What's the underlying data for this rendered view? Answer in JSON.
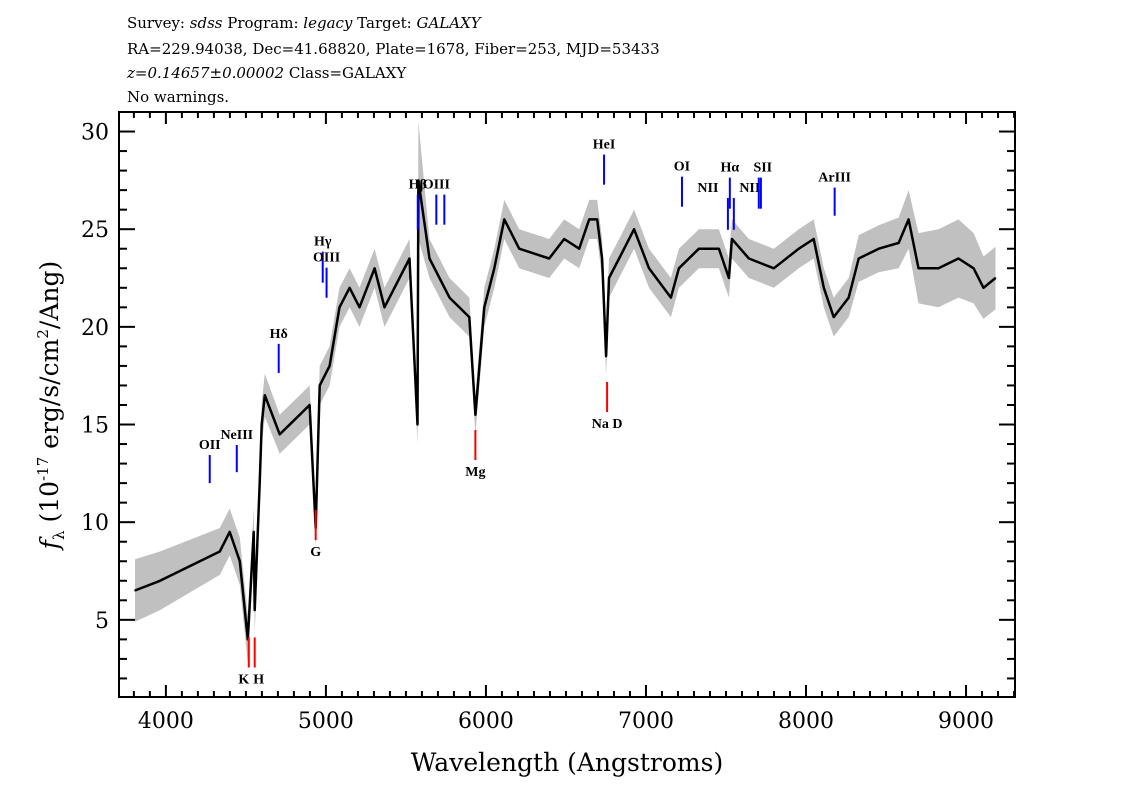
{
  "header": {
    "line1": {
      "survey_label": "Survey: ",
      "survey": "sdss",
      "program_label": " Program: ",
      "program": "legacy",
      "target_label": " Target: ",
      "target": "GALAXY"
    },
    "line2": "RA=229.94038, Dec=41.68820, Plate=1678, Fiber=253, MJD=53433",
    "line3": {
      "redshift": "z=0.14657±0.00002",
      "class": " Class=GALAXY"
    },
    "line4": "No warnings."
  },
  "chart_data": {
    "type": "line",
    "xlabel": "Wavelength (Angstroms)",
    "ylabel": {
      "symbol": "f",
      "sub": "λ",
      "prefix": " (10",
      "exp": "-17",
      "mid": " erg/s/cm",
      "exp2": "2",
      "suffix": "/Ang)"
    },
    "xlim": [
      3707,
      9306
    ],
    "ylim": [
      1.05,
      31.0
    ],
    "xticks": [
      4000,
      5000,
      6000,
      7000,
      8000,
      9000
    ],
    "yticks": [
      5,
      10,
      15,
      20,
      25,
      30
    ],
    "colors": {
      "flux": "#000000",
      "error_band": "#c0c0c0",
      "emission": "#0000ff",
      "absorption": "#ff0000"
    },
    "series": [
      {
        "x": [
          3807,
          3963,
          4212,
          4337,
          4399,
          4462,
          4512,
          4549,
          4555,
          4586,
          4599,
          4618,
          4711,
          4836,
          4898,
          4936,
          4961,
          5023,
          5085,
          5148,
          5210,
          5304,
          5366,
          5460,
          5522,
          5572,
          5578,
          5647,
          5772,
          5896,
          5934,
          5990,
          6052,
          6115,
          6208,
          6395,
          6489,
          6583,
          6645,
          6695,
          6726,
          6751,
          6769,
          6832,
          6926,
          7019,
          7156,
          7206,
          7331,
          7456,
          7518,
          7537,
          7643,
          7799,
          7955,
          8048,
          8111,
          8173,
          8267,
          8329,
          8454,
          8579,
          8641,
          8703,
          8828,
          8953,
          9047,
          9109,
          9184
        ],
        "y": [
          6.5,
          7,
          8,
          8.5,
          9.5,
          8,
          4,
          9.5,
          5.5,
          12,
          15,
          16.5,
          14.5,
          15.5,
          16,
          9.7,
          17,
          18,
          21,
          22,
          21,
          23,
          21,
          22.5,
          23.5,
          15,
          27.5,
          23.5,
          21.5,
          20.5,
          15.5,
          21,
          23,
          25.5,
          24,
          23.5,
          24.5,
          24,
          25.5,
          25.5,
          23.5,
          18.5,
          22.5,
          23.5,
          25,
          23,
          21.5,
          23,
          24,
          24,
          22.5,
          24.5,
          23.5,
          23,
          24,
          24.5,
          22,
          20.5,
          21.5,
          23.5,
          24,
          24.3,
          25.5,
          23,
          23,
          23.5,
          23,
          22,
          22.5
        ],
        "err": [
          1.6,
          1.5,
          1.3,
          1.2,
          1.2,
          1.2,
          1.2,
          1.2,
          1.2,
          1.1,
          1.1,
          1.1,
          1.0,
          1.0,
          1.0,
          1.0,
          1.0,
          1.0,
          1.0,
          1.0,
          1.0,
          1.0,
          1.0,
          1.0,
          1.0,
          1.0,
          3.0,
          1.0,
          1.0,
          1.0,
          1.0,
          1.0,
          1.0,
          1.0,
          1.0,
          1.0,
          1.0,
          1.0,
          1.0,
          1.0,
          1.0,
          1.0,
          1.0,
          1.0,
          1.0,
          1.0,
          1.0,
          1.0,
          1.0,
          1.0,
          1.0,
          1.0,
          1.0,
          1.0,
          1.0,
          1.0,
          1.0,
          1.0,
          1.0,
          1.2,
          1.2,
          1.3,
          1.5,
          1.8,
          2.0,
          2.0,
          1.8,
          1.6,
          1.6
        ]
      }
    ],
    "lines": [
      {
        "label": "OII",
        "wave": 4274,
        "tick": [
          12.0,
          13.44
        ],
        "kind": "emission"
      },
      {
        "label": "NeIII",
        "wave": 4443,
        "tick": [
          12.56,
          13.95
        ],
        "kind": "emission"
      },
      {
        "label": "Hδ",
        "wave": 4705,
        "tick": [
          17.64,
          19.13
        ],
        "kind": "emission"
      },
      {
        "label": "Hγ",
        "wave": 4980,
        "tick": [
          22.26,
          23.85
        ],
        "kind": "emission"
      },
      {
        "label": "OIII",
        "wave": 5004,
        "tick": [
          21.49,
          23.03
        ],
        "kind": "emission"
      },
      {
        "label": "Hβ",
        "wave": 5574,
        "tick": [
          24.97,
          26.77
        ],
        "kind": "emission"
      },
      {
        "label": "OIII",
        "wave": 5690,
        "tick": [
          25.23,
          26.77
        ],
        "kind": "emission"
      },
      {
        "label": "",
        "wave": 5740,
        "tick": [
          25.23,
          26.77
        ],
        "kind": "emission"
      },
      {
        "label": "HeI",
        "wave": 6738,
        "tick": [
          27.28,
          28.82
        ],
        "kind": "emission"
      },
      {
        "label": "OI",
        "wave": 7225,
        "tick": [
          26.15,
          27.69
        ],
        "kind": "emission"
      },
      {
        "label": "NII",
        "wave": 7512,
        "tick": [
          24.97,
          26.6
        ],
        "kind": "emission"
      },
      {
        "label": "Hα",
        "wave": 7524,
        "tick": [
          26.05,
          27.64
        ],
        "kind": "emission"
      },
      {
        "label": "NII",
        "wave": 7549,
        "tick": [
          24.97,
          26.6
        ],
        "kind": "emission"
      },
      {
        "label": "SII",
        "wave": 7705,
        "tick": [
          26.05,
          27.64
        ],
        "kind": "emission"
      },
      {
        "label": "",
        "wave": 7718,
        "tick": [
          26.05,
          27.64
        ],
        "kind": "emission"
      },
      {
        "label": "ArIII",
        "wave": 8179,
        "tick": [
          25.69,
          27.13
        ],
        "kind": "emission"
      },
      {
        "label": "K",
        "wave": 4518,
        "tick": [
          2.56,
          4.1
        ],
        "kind": "absorption"
      },
      {
        "label": "H",
        "wave": 4555,
        "tick": [
          2.56,
          4.1
        ],
        "kind": "absorption"
      },
      {
        "label": "G",
        "wave": 4936,
        "tick": [
          9.08,
          10.62
        ],
        "kind": "absorption"
      },
      {
        "label": "Mg",
        "wave": 5934,
        "tick": [
          13.18,
          14.72
        ],
        "kind": "absorption"
      },
      {
        "label": "Na D",
        "wave": 6757,
        "tick": [
          15.64,
          17.18
        ],
        "kind": "absorption"
      }
    ]
  }
}
